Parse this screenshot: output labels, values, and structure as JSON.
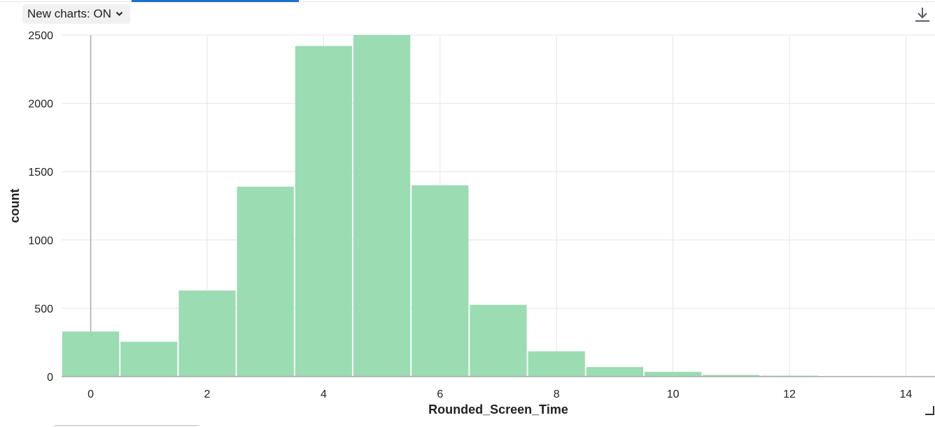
{
  "toolbar": {
    "charts_toggle_label": "New charts: ON",
    "download_icon": "download-icon",
    "chevron_icon": "chevron-down-icon"
  },
  "colors": {
    "bar_fill": "#9bdcb3",
    "grid": "#e6e6e6",
    "zero_line": "#aaaaaa"
  },
  "chart_data": {
    "type": "bar",
    "histogram": true,
    "xlabel": "Rounded_Screen_Time",
    "ylabel": "count",
    "xlim": [
      -0.5,
      14.5
    ],
    "ylim": [
      0,
      2500
    ],
    "x_ticks": [
      0,
      2,
      4,
      6,
      8,
      10,
      12,
      14
    ],
    "y_ticks": [
      0,
      500,
      1000,
      1500,
      2000,
      2500
    ],
    "grid": true,
    "bins": [
      {
        "x": 0,
        "count": 330
      },
      {
        "x": 1,
        "count": 255
      },
      {
        "x": 2,
        "count": 630
      },
      {
        "x": 3,
        "count": 1390
      },
      {
        "x": 4,
        "count": 2420
      },
      {
        "x": 5,
        "count": 2500
      },
      {
        "x": 6,
        "count": 1400
      },
      {
        "x": 7,
        "count": 525
      },
      {
        "x": 8,
        "count": 185
      },
      {
        "x": 9,
        "count": 70
      },
      {
        "x": 10,
        "count": 35
      },
      {
        "x": 11,
        "count": 12
      },
      {
        "x": 12,
        "count": 7
      },
      {
        "x": 13,
        "count": 3
      },
      {
        "x": 14,
        "count": 1
      }
    ]
  }
}
